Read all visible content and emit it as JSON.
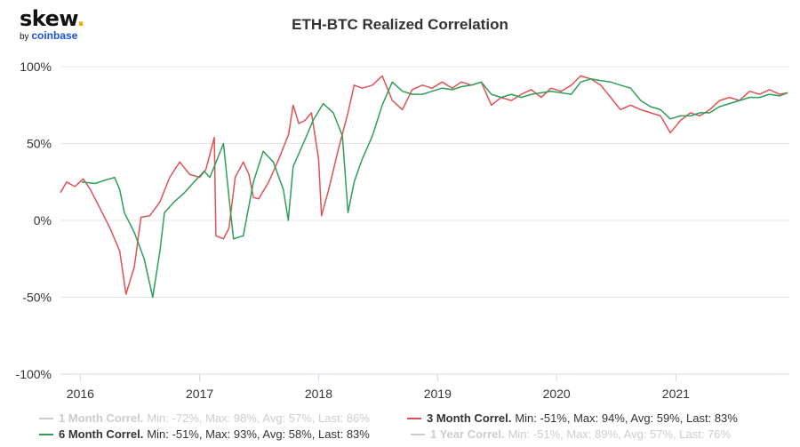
{
  "brand": {
    "name": "skew",
    "dot": ".",
    "by": "by",
    "parent": "coinbase"
  },
  "chart_data": {
    "type": "line",
    "title": "ETH-BTC Realized Correlation",
    "ylim": [
      -100,
      100
    ],
    "yticks": [
      "100%",
      "50%",
      "0%",
      "-50%",
      "-100%"
    ],
    "ytick_values": [
      100,
      50,
      0,
      -50,
      -100
    ],
    "xlim": [
      "2015-11-01",
      "2021-12-15"
    ],
    "xticks": [
      "2016",
      "2017",
      "2018",
      "2019",
      "2020",
      "2021"
    ],
    "xtick_dates": [
      "2016-01-01",
      "2017-01-01",
      "2018-01-01",
      "2019-01-01",
      "2020-01-01",
      "2021-01-01"
    ],
    "grid": "horizontal",
    "series": [
      {
        "name": "1 Month Correl.",
        "stats": "Min: -72%, Max: 98%, Avg: 57%, Last: 86%",
        "visible": false,
        "color": "#cccccc"
      },
      {
        "name": "3 Month Correl.",
        "stats": "Min: -51%, Max: 94%, Avg: 59%, Last: 83%",
        "visible": true,
        "color": "#e05252",
        "points": [
          [
            "2015-11-01",
            18
          ],
          [
            "2015-11-20",
            25
          ],
          [
            "2015-12-15",
            22
          ],
          [
            "2016-01-10",
            27
          ],
          [
            "2016-02-01",
            20
          ],
          [
            "2016-03-01",
            8
          ],
          [
            "2016-04-01",
            -5
          ],
          [
            "2016-05-01",
            -20
          ],
          [
            "2016-05-20",
            -48
          ],
          [
            "2016-06-15",
            -30
          ],
          [
            "2016-07-05",
            2
          ],
          [
            "2016-08-01",
            3
          ],
          [
            "2016-09-01",
            12
          ],
          [
            "2016-10-01",
            28
          ],
          [
            "2016-11-01",
            38
          ],
          [
            "2016-12-01",
            30
          ],
          [
            "2017-01-01",
            28
          ],
          [
            "2017-01-20",
            33
          ],
          [
            "2017-02-15",
            54
          ],
          [
            "2017-02-20",
            -10
          ],
          [
            "2017-03-15",
            -12
          ],
          [
            "2017-04-01",
            -5
          ],
          [
            "2017-04-20",
            28
          ],
          [
            "2017-05-15",
            38
          ],
          [
            "2017-06-01",
            30
          ],
          [
            "2017-06-15",
            15
          ],
          [
            "2017-07-01",
            14
          ],
          [
            "2017-08-01",
            25
          ],
          [
            "2017-09-01",
            40
          ],
          [
            "2017-10-01",
            56
          ],
          [
            "2017-10-15",
            75
          ],
          [
            "2017-11-01",
            63
          ],
          [
            "2017-11-20",
            65
          ],
          [
            "2017-12-10",
            70
          ],
          [
            "2018-01-01",
            40
          ],
          [
            "2018-01-10",
            3
          ],
          [
            "2018-02-01",
            20
          ],
          [
            "2018-03-01",
            45
          ],
          [
            "2018-04-01",
            70
          ],
          [
            "2018-04-20",
            88
          ],
          [
            "2018-05-15",
            86
          ],
          [
            "2018-06-15",
            88
          ],
          [
            "2018-07-15",
            94
          ],
          [
            "2018-08-15",
            78
          ],
          [
            "2018-09-15",
            72
          ],
          [
            "2018-10-15",
            85
          ],
          [
            "2018-11-15",
            88
          ],
          [
            "2018-12-15",
            86
          ],
          [
            "2019-01-15",
            90
          ],
          [
            "2019-02-15",
            86
          ],
          [
            "2019-03-15",
            90
          ],
          [
            "2019-04-15",
            88
          ],
          [
            "2019-05-15",
            90
          ],
          [
            "2019-06-15",
            75
          ],
          [
            "2019-07-15",
            80
          ],
          [
            "2019-08-15",
            78
          ],
          [
            "2019-09-15",
            82
          ],
          [
            "2019-10-15",
            85
          ],
          [
            "2019-11-15",
            80
          ],
          [
            "2019-12-15",
            86
          ],
          [
            "2020-01-15",
            84
          ],
          [
            "2020-02-15",
            88
          ],
          [
            "2020-03-15",
            94
          ],
          [
            "2020-04-15",
            92
          ],
          [
            "2020-05-15",
            88
          ],
          [
            "2020-06-15",
            80
          ],
          [
            "2020-07-15",
            72
          ],
          [
            "2020-08-15",
            75
          ],
          [
            "2020-09-15",
            72
          ],
          [
            "2020-10-15",
            70
          ],
          [
            "2020-11-15",
            68
          ],
          [
            "2020-12-15",
            57
          ],
          [
            "2021-01-15",
            65
          ],
          [
            "2021-02-15",
            70
          ],
          [
            "2021-03-15",
            68
          ],
          [
            "2021-04-15",
            72
          ],
          [
            "2021-05-15",
            78
          ],
          [
            "2021-06-15",
            80
          ],
          [
            "2021-07-15",
            78
          ],
          [
            "2021-08-15",
            84
          ],
          [
            "2021-09-15",
            82
          ],
          [
            "2021-10-15",
            85
          ],
          [
            "2021-11-15",
            82
          ],
          [
            "2021-12-10",
            83
          ]
        ]
      },
      {
        "name": "6 Month Correl.",
        "stats": "Min: -51%, Max: 93%, Avg: 58%, Last: 83%",
        "visible": true,
        "color": "#2e9e57",
        "points": [
          [
            "2016-01-05",
            25
          ],
          [
            "2016-02-15",
            24
          ],
          [
            "2016-03-15",
            26
          ],
          [
            "2016-04-15",
            28
          ],
          [
            "2016-05-01",
            20
          ],
          [
            "2016-05-15",
            5
          ],
          [
            "2016-06-15",
            -8
          ],
          [
            "2016-07-15",
            -25
          ],
          [
            "2016-08-10",
            -50
          ],
          [
            "2016-09-01",
            -20
          ],
          [
            "2016-09-15",
            5
          ],
          [
            "2016-10-15",
            12
          ],
          [
            "2016-11-15",
            18
          ],
          [
            "2016-12-15",
            25
          ],
          [
            "2017-01-15",
            32
          ],
          [
            "2017-02-01",
            28
          ],
          [
            "2017-02-15",
            35
          ],
          [
            "2017-03-15",
            50
          ],
          [
            "2017-04-01",
            15
          ],
          [
            "2017-04-15",
            -12
          ],
          [
            "2017-05-15",
            -10
          ],
          [
            "2017-06-15",
            25
          ],
          [
            "2017-07-15",
            45
          ],
          [
            "2017-08-15",
            38
          ],
          [
            "2017-09-15",
            20
          ],
          [
            "2017-09-30",
            0
          ],
          [
            "2017-10-15",
            35
          ],
          [
            "2017-11-15",
            50
          ],
          [
            "2017-12-15",
            65
          ],
          [
            "2018-01-15",
            76
          ],
          [
            "2018-02-15",
            70
          ],
          [
            "2018-03-15",
            55
          ],
          [
            "2018-04-01",
            5
          ],
          [
            "2018-04-20",
            25
          ],
          [
            "2018-05-15",
            40
          ],
          [
            "2018-06-15",
            55
          ],
          [
            "2018-07-15",
            75
          ],
          [
            "2018-08-15",
            90
          ],
          [
            "2018-09-15",
            84
          ],
          [
            "2018-10-15",
            82
          ],
          [
            "2018-11-15",
            82
          ],
          [
            "2018-12-15",
            84
          ],
          [
            "2019-01-15",
            86
          ],
          [
            "2019-02-15",
            85
          ],
          [
            "2019-03-15",
            87
          ],
          [
            "2019-04-15",
            88
          ],
          [
            "2019-05-15",
            90
          ],
          [
            "2019-06-15",
            82
          ],
          [
            "2019-07-15",
            80
          ],
          [
            "2019-08-15",
            82
          ],
          [
            "2019-09-15",
            80
          ],
          [
            "2019-10-15",
            82
          ],
          [
            "2019-11-15",
            83
          ],
          [
            "2019-12-15",
            84
          ],
          [
            "2020-01-15",
            83
          ],
          [
            "2020-02-15",
            82
          ],
          [
            "2020-03-15",
            90
          ],
          [
            "2020-04-15",
            92
          ],
          [
            "2020-05-15",
            91
          ],
          [
            "2020-06-15",
            90
          ],
          [
            "2020-07-15",
            88
          ],
          [
            "2020-08-15",
            86
          ],
          [
            "2020-09-15",
            78
          ],
          [
            "2020-10-15",
            74
          ],
          [
            "2020-11-15",
            72
          ],
          [
            "2020-12-15",
            66
          ],
          [
            "2021-01-15",
            68
          ],
          [
            "2021-02-15",
            68
          ],
          [
            "2021-03-15",
            70
          ],
          [
            "2021-04-15",
            70
          ],
          [
            "2021-05-15",
            74
          ],
          [
            "2021-06-15",
            76
          ],
          [
            "2021-07-15",
            78
          ],
          [
            "2021-08-15",
            80
          ],
          [
            "2021-09-15",
            80
          ],
          [
            "2021-10-15",
            82
          ],
          [
            "2021-11-15",
            81
          ],
          [
            "2021-12-10",
            83
          ]
        ]
      },
      {
        "name": "1 Year Correl.",
        "stats": "Min: -51%, Max: 89%, Avg: 57%, Last: 76%",
        "visible": false,
        "color": "#cccccc"
      }
    ]
  }
}
